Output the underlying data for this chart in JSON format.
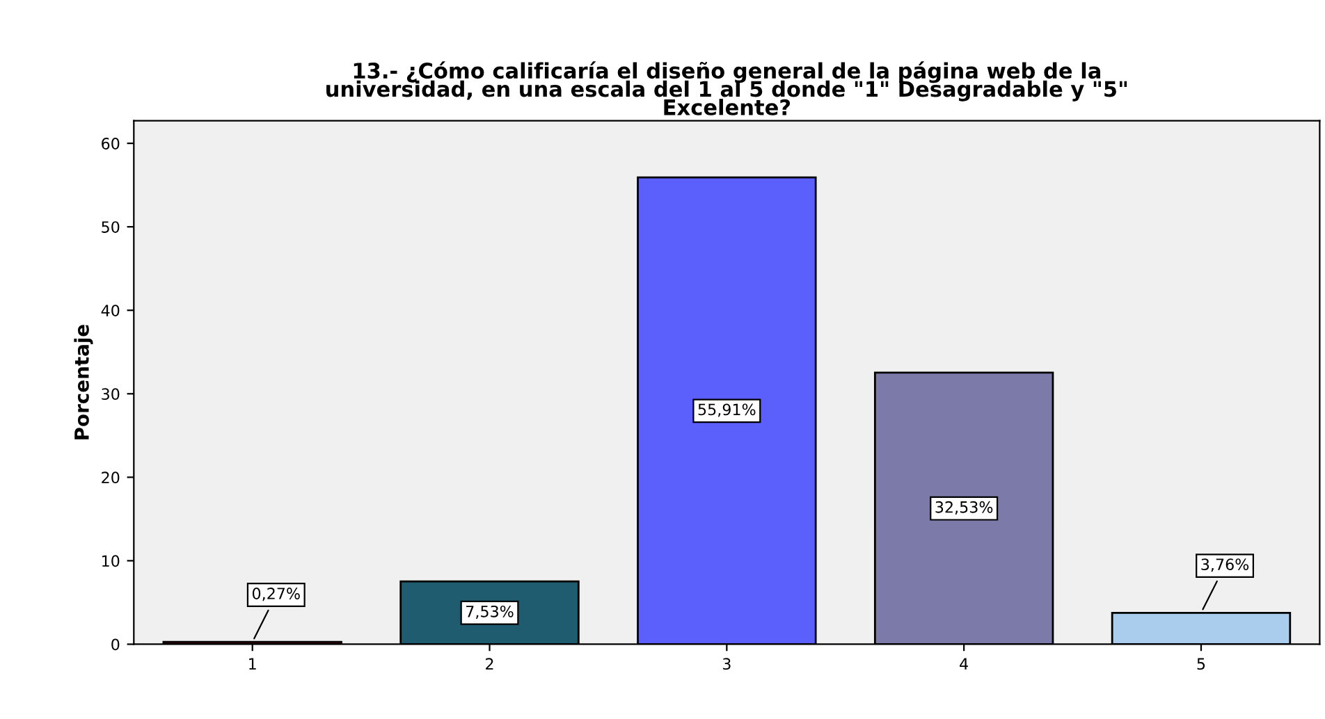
{
  "chart_data": {
    "type": "bar",
    "title": "13.- ¿Cómo calificaría el diseño general de la página web de la\nuniversidad, en una escala del 1 al 5 donde \"1\" Desagradable y \"5\"\nExcelente?",
    "ylabel": "Porcentaje",
    "categories": [
      "1",
      "2",
      "3",
      "4",
      "5"
    ],
    "values": [
      0.27,
      7.53,
      55.91,
      32.53,
      3.76
    ],
    "colors": [
      "#7a0a0a",
      "#1f5c70",
      "#5b5ffc",
      "#7b7aa8",
      "#aacdee"
    ],
    "value_labels": [
      "0,27%",
      "7,53%",
      "55,91%",
      "32,53%",
      "3,76%"
    ],
    "ylim": [
      0,
      62.7
    ],
    "yticks": [
      0,
      10,
      20,
      30,
      40,
      50,
      60
    ],
    "grid": false,
    "legend": false
  }
}
